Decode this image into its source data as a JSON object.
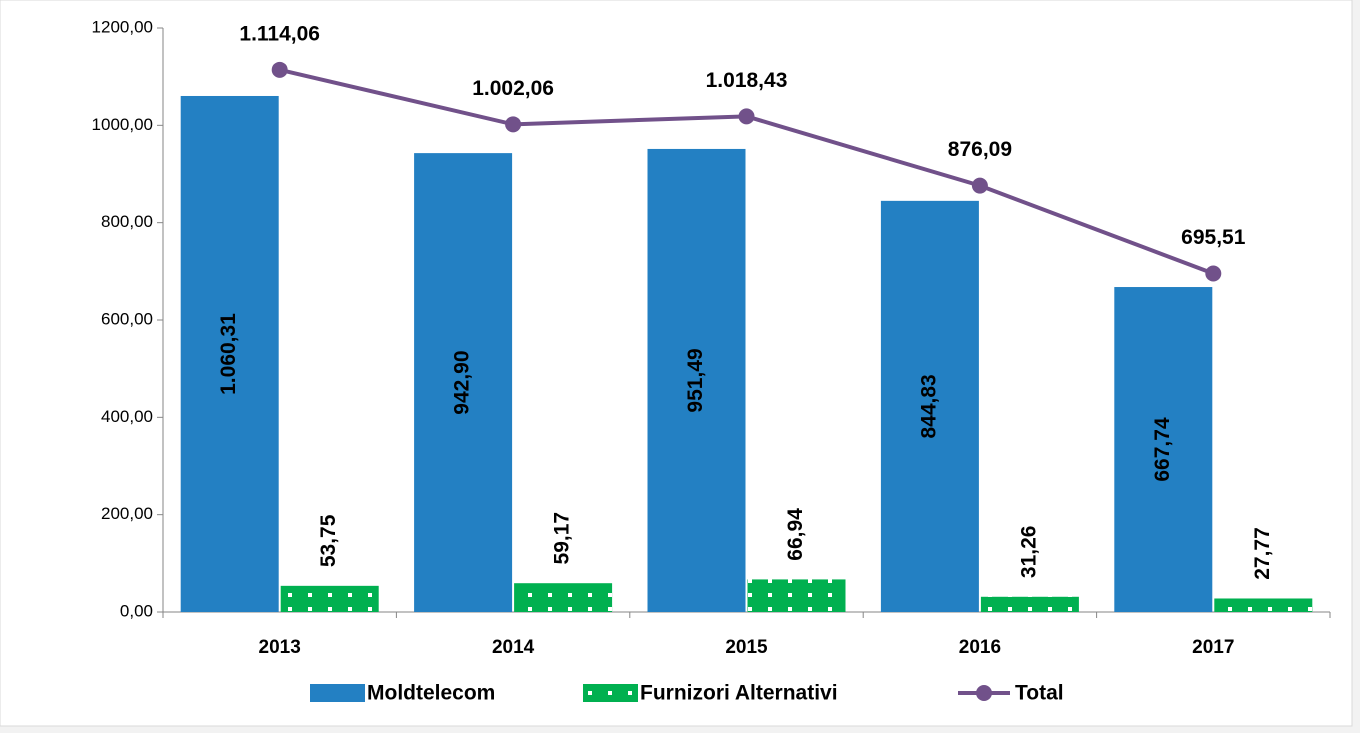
{
  "chart_data": {
    "type": "bar",
    "categories": [
      "2013",
      "2014",
      "2015",
      "2016",
      "2017"
    ],
    "ylim": [
      0,
      1200
    ],
    "yticks": [
      {
        "value": 0,
        "label": "0,00"
      },
      {
        "value": 200,
        "label": "200,00"
      },
      {
        "value": 400,
        "label": "400,00"
      },
      {
        "value": 600,
        "label": "600,00"
      },
      {
        "value": 800,
        "label": "800,00"
      },
      {
        "value": 1000,
        "label": "1000,00"
      },
      {
        "value": 1200,
        "label": "1200,00"
      }
    ],
    "series": [
      {
        "name": "Moldtelecom",
        "type": "bar",
        "color": "#2380c3",
        "values": [
          1060.31,
          942.9,
          951.49,
          844.83,
          667.74
        ],
        "value_labels": [
          "1.060,31",
          "942,90",
          "951,49",
          "844,83",
          "667,74"
        ]
      },
      {
        "name": "Furnizori Alternativi",
        "type": "bar",
        "color": "#00b050",
        "values": [
          53.75,
          59.17,
          66.94,
          31.26,
          27.77
        ],
        "value_labels": [
          "53,75",
          "59,17",
          "66,94",
          "31,26",
          "27,77"
        ]
      },
      {
        "name": "Total",
        "type": "line",
        "color": "#71518a",
        "values": [
          1114.06,
          1002.06,
          1018.43,
          876.09,
          695.51
        ],
        "value_labels": [
          "1.114,06",
          "1.002,06",
          "1.018,43",
          "876,09",
          "695,51"
        ]
      }
    ]
  }
}
